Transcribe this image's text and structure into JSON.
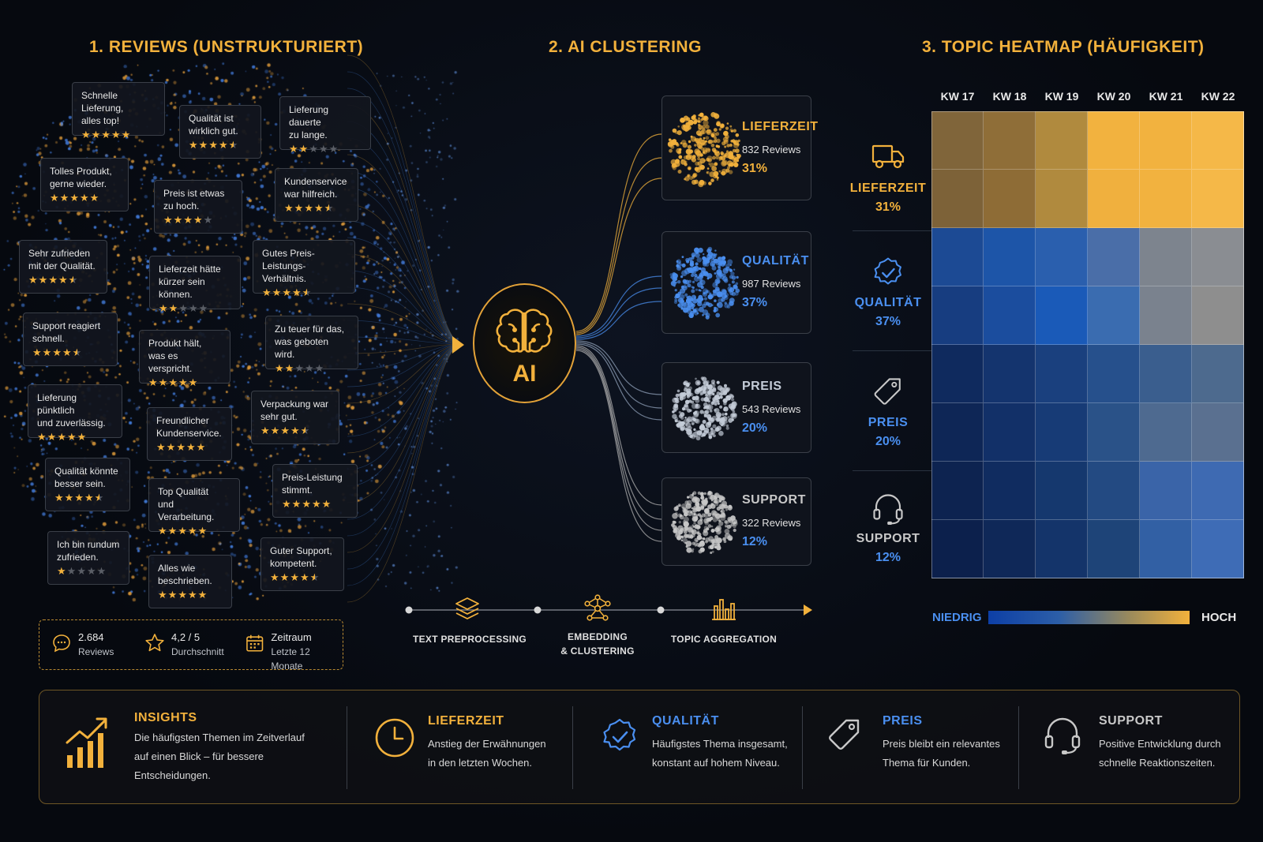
{
  "colors": {
    "gold": "#f2b13c",
    "blue": "#4a8ff0",
    "grey": "#c8c8c8",
    "bg": "#06090f"
  },
  "sections": {
    "reviews_title": "1. REVIEWS (UNSTRUKTURIERT)",
    "clustering_title": "2. AI CLUSTERING",
    "heatmap_title": "3. TOPIC HEATMAP (HÄUFIGKEIT)"
  },
  "reviews": [
    {
      "text": "Schnelle Lieferung,\nalles top!",
      "stars": 5
    },
    {
      "text": "Qualität ist\nwirklich gut.",
      "stars": 4.5
    },
    {
      "text": "Lieferung dauerte\nzu lange.",
      "stars": 2
    },
    {
      "text": "Tolles Produkt,\ngerne wieder.",
      "stars": 5
    },
    {
      "text": "Preis ist etwas\nzu hoch.",
      "stars": 4
    },
    {
      "text": "Kundenservice\nwar hilfreich.",
      "stars": 4.5
    },
    {
      "text": "Sehr zufrieden\nmit der Qualität.",
      "stars": 4.5
    },
    {
      "text": "Lieferzeit hätte\nkürzer sein können.",
      "stars": 2
    },
    {
      "text": "Gutes Preis-\nLeistungs-Verhältnis.",
      "stars": 4.5
    },
    {
      "text": "Support reagiert\nschnell.",
      "stars": 4.5
    },
    {
      "text": "Produkt hält,\nwas es verspricht.",
      "stars": 5
    },
    {
      "text": "Zu teuer für das,\nwas geboten wird.",
      "stars": 2
    },
    {
      "text": "Lieferung pünktlich\nund zuverlässig.",
      "stars": 5
    },
    {
      "text": "Freundlicher\nKundenservice.",
      "stars": 5
    },
    {
      "text": "Verpackung war\nsehr gut.",
      "stars": 4.5
    },
    {
      "text": "Qualität könnte\nbesser sein.",
      "stars": 4.5
    },
    {
      "text": "Top Qualität\nund Verarbeitung.",
      "stars": 5
    },
    {
      "text": "Preis-Leistung\nstimmt.",
      "stars": 5
    },
    {
      "text": "Ich bin rundum\nzufrieden.",
      "stars": 1
    },
    {
      "text": "Alles wie\nbeschrieben.",
      "stars": 5
    },
    {
      "text": "Guter Support,\nkompetent.",
      "stars": 4.5
    }
  ],
  "stats": [
    {
      "icon": "chat-bubble-icon",
      "value": "2.684",
      "label": "Reviews"
    },
    {
      "icon": "star-outline-icon",
      "value": "4,2 / 5",
      "label": "Durchschnitt"
    },
    {
      "icon": "calendar-icon",
      "value": "Zeitraum",
      "label": "Letzte 12 Monate"
    }
  ],
  "ai_label": "AI",
  "clusters": [
    {
      "name": "LIEFERZEIT",
      "count": "832 Reviews",
      "percent": "31%",
      "color": "#f2b13c",
      "pcolor": "#f2b13c"
    },
    {
      "name": "QUALITÄT",
      "count": "987 Reviews",
      "percent": "37%",
      "color": "#4a8ff0",
      "pcolor": "#4a8ff0"
    },
    {
      "name": "PREIS",
      "count": "543 Reviews",
      "percent": "20%",
      "color": "#c4ccd8",
      "pcolor": "#4a8ff0"
    },
    {
      "name": "SUPPORT",
      "count": "322 Reviews",
      "percent": "12%",
      "color": "#c8c8c8",
      "pcolor": "#4a8ff0"
    }
  ],
  "pipeline": [
    {
      "label": "TEXT PREPROCESSING",
      "icon": "layers-icon"
    },
    {
      "label": "EMBEDDING\n& CLUSTERING",
      "icon": "network-icon"
    },
    {
      "label": "TOPIC AGGREGATION",
      "icon": "bar-chart-icon"
    }
  ],
  "heatmap": {
    "weeks": [
      "KW 17",
      "KW 18",
      "KW 19",
      "KW 20",
      "KW 21",
      "KW 22"
    ],
    "rows": [
      {
        "name": "LIEFERZEIT",
        "percent": "31%",
        "icon": "truck-icon",
        "color": "#f2b13c",
        "pcolor": "#f2b13c"
      },
      {
        "name": "QUALITÄT",
        "percent": "37%",
        "icon": "badge-check-icon",
        "color": "#4a8ff0",
        "pcolor": "#4a8ff0"
      },
      {
        "name": "PREIS",
        "percent": "20%",
        "icon": "price-tag-icon",
        "color": "#4a8ff0",
        "pcolor": "#4a8ff0"
      },
      {
        "name": "SUPPORT",
        "percent": "12%",
        "icon": "headset-icon",
        "color": "#c8c8c8",
        "pcolor": "#4a8ff0"
      }
    ],
    "cells": [
      [
        "#80653a",
        "#8f6e38",
        "#b08a3e",
        "#f2b23f",
        "#f2b23f",
        "#f5b848"
      ],
      [
        "#7d6238",
        "#8e6c36",
        "#b08a3e",
        "#f0b03e",
        "#f2b23f",
        "#f5b848"
      ],
      [
        "#1c4a94",
        "#1d55a8",
        "#2a5fae",
        "#4a6ea8",
        "#7d848e",
        "#8a8d92"
      ],
      [
        "#173d80",
        "#1b4d9e",
        "#1a5ab8",
        "#3a6cb0",
        "#7a828e",
        "#8e8e8e"
      ],
      [
        "#0f2a5e",
        "#14346e",
        "#1a407e",
        "#26508c",
        "#3a5e8e",
        "#4d6a8e"
      ],
      [
        "#0e2656",
        "#123068",
        "#173b76",
        "#2a5288",
        "#4e6a90",
        "#5a7090"
      ],
      [
        "#0d2350",
        "#102c60",
        "#15386e",
        "#234a82",
        "#3a64a8",
        "#3e6ab2"
      ],
      [
        "#0c204c",
        "#0f2858",
        "#14346a",
        "#1e4478",
        "#3260a4",
        "#3e6cb6"
      ]
    ],
    "legend_low": "NIEDRIG",
    "legend_high": "HOCH"
  },
  "insights": [
    {
      "icon": "trend-chart-icon",
      "title": "INSIGHTS",
      "text": "Die häufigsten Themen im Zeitverlauf\nauf einen Blick – für bessere\nEntscheidungen.",
      "color": "#f2b13c"
    },
    {
      "icon": "clock-icon",
      "title": "LIEFERZEIT",
      "text": "Anstieg der Erwähnungen\nin den letzten Wochen.",
      "color": "#f2b13c"
    },
    {
      "icon": "badge-check-icon",
      "title": "QUALITÄT",
      "text": "Häufigstes Thema insgesamt,\nkonstant auf hohem Niveau.",
      "color": "#4a8ff0"
    },
    {
      "icon": "price-tag-icon",
      "title": "PREIS",
      "text": "Preis bleibt ein relevantes\nThema für Kunden.",
      "color": "#4a8ff0"
    },
    {
      "icon": "headset-icon",
      "title": "SUPPORT",
      "text": "Positive Entwicklung durch\nschnelle Reaktionszeiten.",
      "color": "#c8c8c8"
    }
  ]
}
